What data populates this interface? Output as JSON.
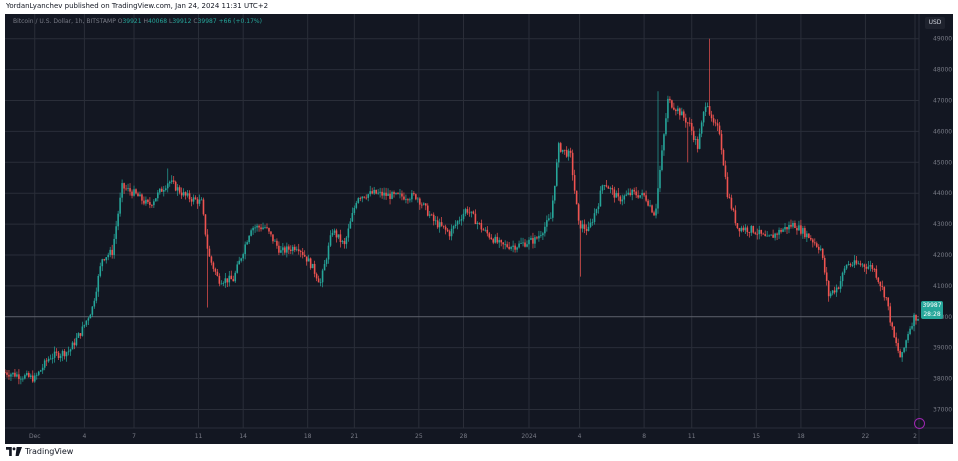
{
  "publisher": "YordanLyanchev published on TradingView.com, Jan 24, 2024 11:31 UTC+2",
  "brand": "TradingView",
  "legend": {
    "symbol": "Bitcoin / U.S. Dollar, 1h, BITSTAMP",
    "o_label": "O",
    "o": "39921",
    "h_label": "H",
    "h": "40068",
    "l_label": "L",
    "l": "39912",
    "c_label": "C",
    "c": "39987",
    "change": "+66 (+0.17%)"
  },
  "currency": "USD",
  "last_price": "39987",
  "countdown": "28:28",
  "colors": {
    "background": "#131722",
    "grid": "#2a2e39",
    "up": "#26a69a",
    "down": "#ef5350",
    "axis_text": "#787b86"
  },
  "chart_data": {
    "type": "candlestick",
    "y_axis": {
      "min": 36400,
      "max": 49800,
      "ticks": [
        "37000",
        "38000",
        "39000",
        "40000",
        "41000",
        "42000",
        "43000",
        "44000",
        "45000",
        "46000",
        "47000",
        "48000",
        "49000"
      ]
    },
    "x_ticks": [
      "Dec",
      "4",
      "7",
      "11",
      "14",
      "18",
      "21",
      "25",
      "28",
      "2024",
      "4",
      "8",
      "11",
      "15",
      "18",
      "22",
      "2"
    ],
    "x_tick_index": [
      30,
      80,
      130,
      195,
      240,
      305,
      352,
      417,
      462,
      528,
      579,
      644,
      692,
      757,
      802,
      867,
      917
    ],
    "x_range": [
      0,
      921
    ],
    "series_name": "BTCUSD",
    "trend": [
      [
        0,
        38200
      ],
      [
        15,
        38100
      ],
      [
        30,
        38000
      ],
      [
        45,
        38700
      ],
      [
        65,
        38900
      ],
      [
        78,
        39600
      ],
      [
        88,
        40300
      ],
      [
        98,
        41900
      ],
      [
        108,
        42100
      ],
      [
        118,
        44200
      ],
      [
        130,
        44000
      ],
      [
        145,
        43600
      ],
      [
        165,
        44400
      ],
      [
        182,
        43900
      ],
      [
        198,
        43700
      ],
      [
        205,
        42000
      ],
      [
        215,
        41200
      ],
      [
        230,
        41200
      ],
      [
        248,
        42900
      ],
      [
        262,
        42900
      ],
      [
        278,
        42100
      ],
      [
        295,
        42300
      ],
      [
        308,
        41700
      ],
      [
        318,
        41100
      ],
      [
        330,
        42800
      ],
      [
        342,
        42300
      ],
      [
        355,
        43900
      ],
      [
        372,
        44000
      ],
      [
        392,
        43900
      ],
      [
        415,
        43900
      ],
      [
        432,
        43100
      ],
      [
        448,
        42700
      ],
      [
        465,
        43500
      ],
      [
        482,
        42800
      ],
      [
        500,
        42300
      ],
      [
        515,
        42300
      ],
      [
        535,
        42500
      ],
      [
        550,
        43200
      ],
      [
        558,
        45500
      ],
      [
        570,
        45200
      ],
      [
        578,
        43000
      ],
      [
        588,
        42800
      ],
      [
        598,
        43700
      ],
      [
        603,
        44400
      ],
      [
        618,
        43800
      ],
      [
        632,
        44000
      ],
      [
        645,
        43900
      ],
      [
        655,
        43300
      ],
      [
        662,
        45300
      ],
      [
        668,
        47000
      ],
      [
        678,
        46700
      ],
      [
        690,
        46200
      ],
      [
        698,
        45500
      ],
      [
        707,
        47100
      ],
      [
        712,
        46300
      ],
      [
        720,
        46000
      ],
      [
        728,
        44000
      ],
      [
        738,
        42900
      ],
      [
        755,
        42800
      ],
      [
        768,
        42500
      ],
      [
        782,
        42800
      ],
      [
        795,
        43000
      ],
      [
        810,
        42600
      ],
      [
        822,
        42200
      ],
      [
        830,
        40700
      ],
      [
        840,
        41000
      ],
      [
        848,
        41700
      ],
      [
        862,
        41700
      ],
      [
        875,
        41600
      ],
      [
        888,
        40600
      ],
      [
        895,
        39400
      ],
      [
        903,
        38600
      ],
      [
        910,
        39500
      ],
      [
        916,
        39990
      ]
    ],
    "spikes": [
      [
        165,
        44800
      ],
      [
        205,
        40300
      ],
      [
        580,
        41300
      ],
      [
        658,
        47300
      ],
      [
        710,
        49000
      ],
      [
        688,
        45000
      ]
    ],
    "horizontal_line": 40000
  }
}
